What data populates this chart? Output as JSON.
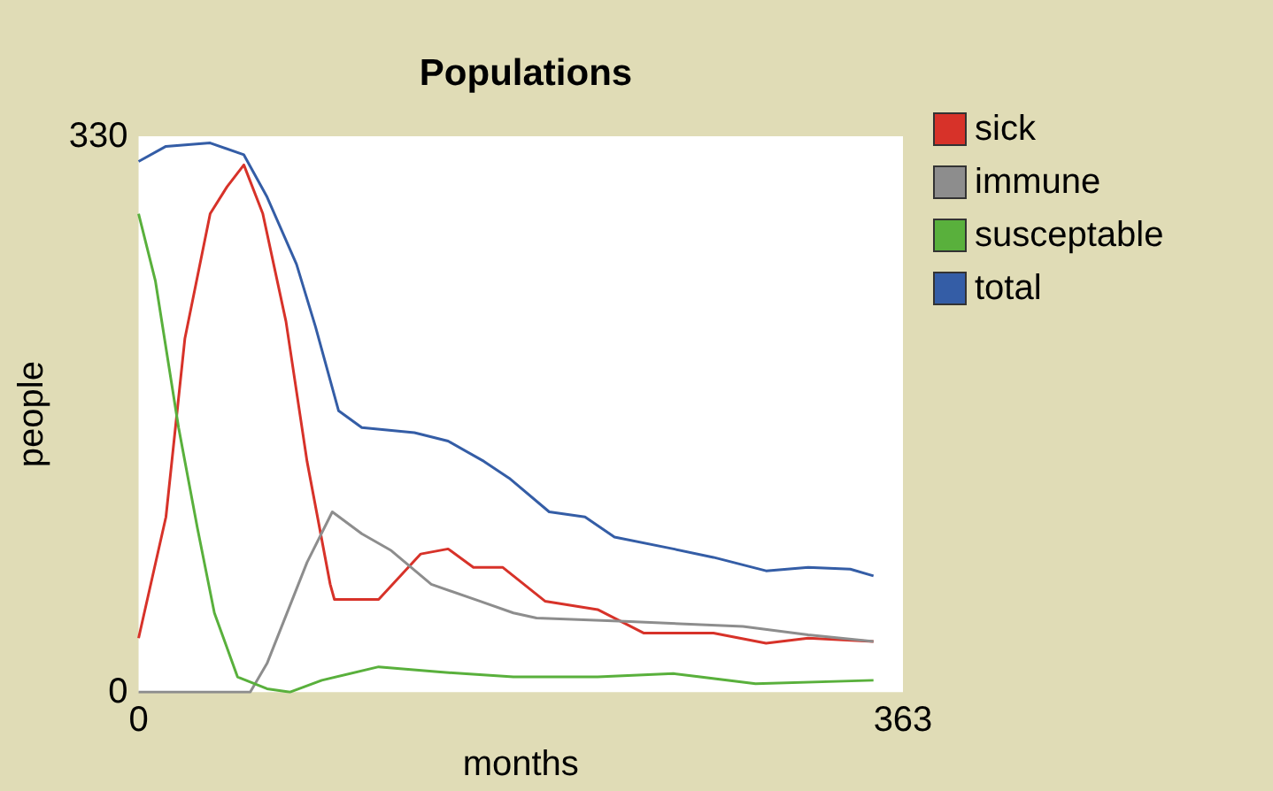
{
  "chart_data": {
    "type": "line",
    "title": "Populations",
    "xlabel": "months",
    "ylabel": "people",
    "xlim": [
      0,
      363
    ],
    "xticks": [
      0,
      363
    ],
    "ylim": [
      0,
      330
    ],
    "yticks": [
      0,
      330
    ],
    "grid": false,
    "legend": "right",
    "series": [
      {
        "name": "sick",
        "color": "#d73229",
        "x": [
          0,
          13,
          22,
          34,
          42,
          50,
          59,
          70,
          80,
          91,
          93,
          114,
          134,
          147,
          159,
          173,
          193,
          218,
          240,
          273,
          298,
          318,
          349
        ],
        "values": [
          32,
          104,
          210,
          284,
          300,
          313,
          284,
          220,
          137,
          64,
          55,
          55,
          82,
          85,
          74,
          74,
          54,
          49,
          35,
          35,
          29,
          32,
          30
        ]
      },
      {
        "name": "immune",
        "color": "#8d8d8d",
        "x": [
          0,
          53,
          61,
          80,
          92,
          106,
          120,
          139,
          162,
          178,
          189,
          231,
          287,
          318,
          349
        ],
        "values": [
          0,
          0,
          17,
          77,
          107,
          94,
          84,
          64,
          54,
          47,
          44,
          42,
          39,
          34,
          30
        ]
      },
      {
        "name": "susceptable",
        "color": "#59b03c",
        "x": [
          0,
          8,
          19,
          28,
          36,
          47,
          61,
          72,
          87,
          114,
          142,
          178,
          218,
          254,
          293,
          349
        ],
        "values": [
          284,
          244,
          157,
          97,
          47,
          9,
          2,
          0,
          7,
          15,
          12,
          9,
          9,
          11,
          5,
          7
        ]
      },
      {
        "name": "total",
        "color": "#345da6",
        "x": [
          0,
          13,
          34,
          50,
          61,
          75,
          84,
          95,
          106,
          131,
          147,
          164,
          176,
          195,
          212,
          226,
          254,
          273,
          298,
          318,
          338,
          349
        ],
        "values": [
          315,
          324,
          326,
          319,
          294,
          254,
          217,
          167,
          157,
          154,
          149,
          137,
          127,
          107,
          104,
          92,
          85,
          80,
          72,
          74,
          73,
          69
        ]
      }
    ]
  }
}
